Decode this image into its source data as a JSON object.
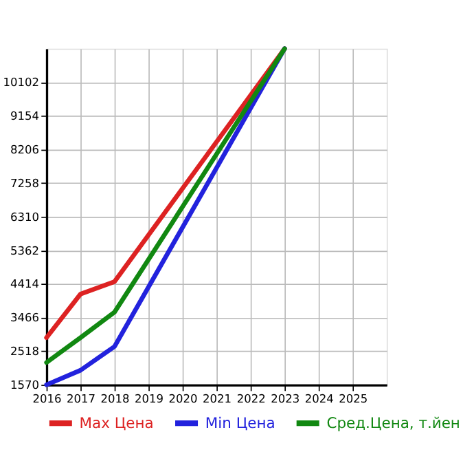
{
  "chart_data": {
    "type": "line",
    "xlim": [
      2016,
      2026
    ],
    "xticks": [
      2016,
      2017,
      2018,
      2019,
      2020,
      2021,
      2022,
      2023,
      2024,
      2025
    ],
    "ylim": [
      1570,
      11050
    ],
    "yticks": [
      1570,
      2518,
      3466,
      4414,
      5362,
      6310,
      7258,
      8206,
      9154,
      10102
    ],
    "grid": true,
    "legend": "bottom",
    "marker": "none",
    "line_style": "solid",
    "series": [
      {
        "name": "Max Цена",
        "color": "#dd2222",
        "x": [
          2016,
          2017,
          2018,
          2023
        ],
        "values": [
          2900,
          4130,
          4480,
          11050
        ]
      },
      {
        "name": "Min Цена",
        "color": "#2222dd",
        "x": [
          2016,
          2017,
          2018,
          2023
        ],
        "values": [
          1570,
          1980,
          2650,
          11050
        ]
      },
      {
        "name": "Сред.Цена, т.йен",
        "color": "#118811",
        "x": [
          2016,
          2017,
          2018,
          2023
        ],
        "values": [
          2200,
          2900,
          3620,
          11050
        ]
      }
    ]
  }
}
